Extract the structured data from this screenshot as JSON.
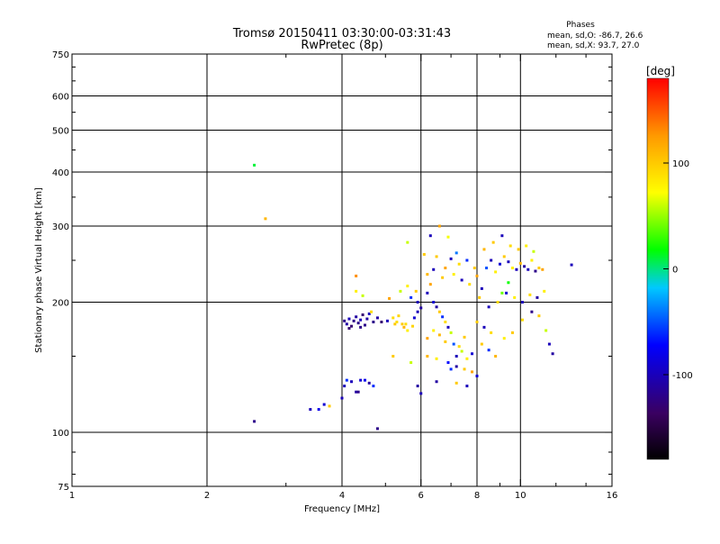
{
  "chart_data": {
    "type": "scatter",
    "title": "Tromsø 20150411 03:30:00-03:31:43",
    "subtitle": "RwPretec (8p)",
    "xlabel": "Frequency [MHz]",
    "ylabel": "Stationary phase Virtual Height [km]",
    "xscale": "log",
    "yscale": "log",
    "xlim": [
      1,
      16
    ],
    "ylim": [
      75,
      750
    ],
    "x_ticks": [
      1,
      2,
      4,
      6,
      8,
      10,
      16
    ],
    "x_minor_ticks": [
      3,
      5,
      7,
      9,
      12,
      14
    ],
    "y_ticks": [
      75,
      100,
      200,
      300,
      400,
      500,
      600,
      750
    ],
    "y_minor_ticks": [
      80,
      90,
      150,
      250,
      350,
      450,
      550,
      650,
      700
    ],
    "x_gridlines": [
      2,
      4,
      6,
      8,
      10
    ],
    "y_gridlines": [
      100,
      200,
      300,
      400,
      500,
      600
    ],
    "grid": true,
    "stats": {
      "title": "Phases",
      "line_o": "mean, sd,O: -86.7, 26.6",
      "line_x": "mean, sd,X:  93.7, 27.0"
    },
    "colorbar": {
      "label": "[deg]",
      "range": [
        -180,
        180
      ],
      "ticks": [
        100,
        0,
        -100
      ],
      "colors": [
        "#000000",
        "#3a0060",
        "#0000ff",
        "#00c8ff",
        "#00ff00",
        "#ffff00",
        "#ff9900",
        "#ff0000"
      ]
    },
    "series": [
      {
        "name": "echoes",
        "points": [
          [
            2.55,
            415,
            10
          ],
          [
            2.7,
            312,
            110
          ],
          [
            2.55,
            106,
            -120
          ],
          [
            3.4,
            113,
            -100
          ],
          [
            3.55,
            113,
            -80
          ],
          [
            3.65,
            116,
            -90
          ],
          [
            3.75,
            115,
            100
          ],
          [
            4.0,
            120,
            -100
          ],
          [
            4.05,
            128,
            -100
          ],
          [
            4.1,
            132,
            -60
          ],
          [
            4.2,
            131,
            -100
          ],
          [
            4.3,
            124,
            -110
          ],
          [
            4.4,
            132,
            -90
          ],
          [
            4.5,
            132,
            -80
          ],
          [
            4.6,
            130,
            -110
          ],
          [
            4.7,
            128,
            -60
          ],
          [
            4.8,
            102,
            -120
          ],
          [
            4.35,
            124,
            -120
          ],
          [
            4.05,
            181,
            -120
          ],
          [
            4.1,
            178,
            -110
          ],
          [
            4.15,
            183,
            -100
          ],
          [
            4.2,
            176,
            -130
          ],
          [
            4.25,
            181,
            -120
          ],
          [
            4.3,
            185,
            -110
          ],
          [
            4.35,
            179,
            -120
          ],
          [
            4.4,
            182,
            -100
          ],
          [
            4.45,
            187,
            -130
          ],
          [
            4.5,
            177,
            -120
          ],
          [
            4.55,
            183,
            -110
          ],
          [
            4.6,
            188,
            -100
          ],
          [
            4.7,
            180,
            -120
          ],
          [
            4.8,
            184,
            -110
          ],
          [
            4.9,
            180,
            -130
          ],
          [
            4.15,
            174,
            -130
          ],
          [
            4.4,
            175,
            -120
          ],
          [
            4.3,
            212,
            80
          ],
          [
            4.45,
            207,
            60
          ],
          [
            4.3,
            230,
            130
          ],
          [
            4.65,
            190,
            90
          ],
          [
            5.05,
            181,
            -100
          ],
          [
            5.2,
            184,
            90
          ],
          [
            5.25,
            178,
            100
          ],
          [
            5.3,
            180,
            90
          ],
          [
            5.35,
            186,
            95
          ],
          [
            5.45,
            178,
            100
          ],
          [
            5.5,
            175,
            110
          ],
          [
            5.55,
            178,
            90
          ],
          [
            5.6,
            172,
            80
          ],
          [
            5.75,
            176,
            95
          ],
          [
            5.8,
            184,
            -90
          ],
          [
            5.9,
            190,
            -100
          ],
          [
            5.1,
            204,
            120
          ],
          [
            5.4,
            212,
            60
          ],
          [
            5.6,
            218,
            80
          ],
          [
            5.7,
            205,
            -60
          ],
          [
            5.85,
            212,
            100
          ],
          [
            5.9,
            200,
            -100
          ],
          [
            6.0,
            194,
            -110
          ],
          [
            5.9,
            128,
            -110
          ],
          [
            6.0,
            123,
            -100
          ],
          [
            5.2,
            150,
            100
          ],
          [
            5.7,
            145,
            60
          ],
          [
            6.2,
            210,
            -100
          ],
          [
            6.3,
            220,
            120
          ],
          [
            6.4,
            200,
            -90
          ],
          [
            6.5,
            195,
            -110
          ],
          [
            6.6,
            190,
            100
          ],
          [
            6.7,
            185,
            -60
          ],
          [
            6.8,
            180,
            90
          ],
          [
            6.9,
            175,
            -100
          ],
          [
            7.0,
            170,
            60
          ],
          [
            6.2,
            165,
            120
          ],
          [
            6.4,
            172,
            80
          ],
          [
            6.6,
            168,
            110
          ],
          [
            6.8,
            162,
            100
          ],
          [
            7.1,
            160,
            -50
          ],
          [
            7.3,
            158,
            90
          ],
          [
            7.5,
            166,
            100
          ],
          [
            7.2,
            150,
            -100
          ],
          [
            7.4,
            154,
            60
          ],
          [
            7.6,
            148,
            80
          ],
          [
            7.8,
            152,
            -90
          ],
          [
            6.2,
            150,
            110
          ],
          [
            6.5,
            148,
            80
          ],
          [
            6.9,
            145,
            -70
          ],
          [
            7.0,
            140,
            -60
          ],
          [
            7.2,
            142,
            -110
          ],
          [
            7.5,
            140,
            100
          ],
          [
            7.8,
            138,
            120
          ],
          [
            6.3,
            285,
            -100
          ],
          [
            6.6,
            300,
            120
          ],
          [
            6.9,
            283,
            70
          ],
          [
            7.2,
            260,
            -40
          ],
          [
            6.5,
            255,
            100
          ],
          [
            6.8,
            240,
            120
          ],
          [
            7.0,
            252,
            -100
          ],
          [
            7.3,
            245,
            90
          ],
          [
            7.6,
            250,
            -60
          ],
          [
            7.9,
            240,
            100
          ],
          [
            6.2,
            232,
            110
          ],
          [
            6.4,
            238,
            -100
          ],
          [
            6.7,
            228,
            100
          ],
          [
            7.1,
            232,
            80
          ],
          [
            7.4,
            225,
            -100
          ],
          [
            7.7,
            220,
            90
          ],
          [
            8.0,
            230,
            120
          ],
          [
            8.2,
            215,
            -100
          ],
          [
            8.4,
            240,
            -50
          ],
          [
            8.6,
            250,
            -100
          ],
          [
            8.8,
            235,
            80
          ],
          [
            9.0,
            245,
            -90
          ],
          [
            9.2,
            255,
            100
          ],
          [
            9.4,
            248,
            -100
          ],
          [
            9.6,
            240,
            80
          ],
          [
            9.8,
            238,
            -100
          ],
          [
            10.0,
            246,
            110
          ],
          [
            10.2,
            242,
            -110
          ],
          [
            10.4,
            238,
            -100
          ],
          [
            10.6,
            250,
            80
          ],
          [
            10.8,
            236,
            -120
          ],
          [
            11.0,
            240,
            100
          ],
          [
            11.2,
            238,
            120
          ],
          [
            13.0,
            244,
            -100
          ],
          [
            8.3,
            265,
            110
          ],
          [
            8.7,
            275,
            100
          ],
          [
            9.1,
            285,
            -100
          ],
          [
            9.5,
            270,
            90
          ],
          [
            9.9,
            265,
            100
          ],
          [
            10.3,
            270,
            80
          ],
          [
            10.7,
            262,
            60
          ],
          [
            8.1,
            205,
            100
          ],
          [
            8.5,
            195,
            -100
          ],
          [
            8.9,
            200,
            90
          ],
          [
            9.3,
            210,
            -90
          ],
          [
            9.7,
            205,
            80
          ],
          [
            10.1,
            200,
            -100
          ],
          [
            10.5,
            208,
            90
          ],
          [
            10.9,
            205,
            -110
          ],
          [
            11.3,
            212,
            80
          ],
          [
            8.0,
            180,
            100
          ],
          [
            8.3,
            175,
            -100
          ],
          [
            8.6,
            170,
            90
          ],
          [
            8.2,
            160,
            100
          ],
          [
            8.5,
            155,
            -60
          ],
          [
            8.8,
            150,
            110
          ],
          [
            9.2,
            165,
            80
          ],
          [
            9.6,
            170,
            100
          ],
          [
            10.1,
            182,
            90
          ],
          [
            10.6,
            190,
            -120
          ],
          [
            11.0,
            186,
            100
          ],
          [
            11.4,
            172,
            60
          ],
          [
            11.6,
            160,
            -100
          ],
          [
            11.8,
            152,
            -110
          ],
          [
            7.2,
            130,
            100
          ],
          [
            7.6,
            128,
            -100
          ],
          [
            8.0,
            135,
            -90
          ],
          [
            6.5,
            131,
            -110
          ],
          [
            6.1,
            258,
            100
          ],
          [
            5.6,
            275,
            60
          ],
          [
            9.1,
            210,
            40
          ],
          [
            9.4,
            222,
            20
          ]
        ]
      }
    ]
  }
}
